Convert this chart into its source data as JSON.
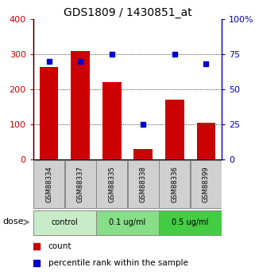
{
  "title": "GDS1809 / 1430851_at",
  "categories": [
    "GSM88334",
    "GSM88337",
    "GSM88335",
    "GSM88338",
    "GSM88336",
    "GSM88399"
  ],
  "bar_values": [
    265,
    310,
    220,
    30,
    170,
    105
  ],
  "percentile_values": [
    70,
    70,
    75,
    25,
    75,
    68
  ],
  "bar_color": "#cc0000",
  "dot_color": "#0000cc",
  "left_ylim": [
    0,
    400
  ],
  "right_ylim": [
    0,
    100
  ],
  "left_yticks": [
    0,
    100,
    200,
    300,
    400
  ],
  "right_yticks": [
    0,
    25,
    50,
    75,
    100
  ],
  "right_yticklabels": [
    "0",
    "25",
    "50",
    "75",
    "100%"
  ],
  "groups": [
    {
      "label": "control",
      "indices": [
        0,
        1
      ],
      "color": "#c8ecc8"
    },
    {
      "label": "0.1 ug/ml",
      "indices": [
        2,
        3
      ],
      "color": "#88dd88"
    },
    {
      "label": "0.5 ug/ml",
      "indices": [
        4,
        5
      ],
      "color": "#44cc44"
    }
  ],
  "dose_label": "dose",
  "legend_count_label": "count",
  "legend_percentile_label": "percentile rank within the sample",
  "bg_color": "#ffffff",
  "left_axis_color": "#cc0000",
  "right_axis_color": "#0000cc",
  "grid_lines": [
    100,
    200,
    300
  ],
  "label_box_color": "#d0d0d0",
  "label_box_edge_color": "#888888"
}
